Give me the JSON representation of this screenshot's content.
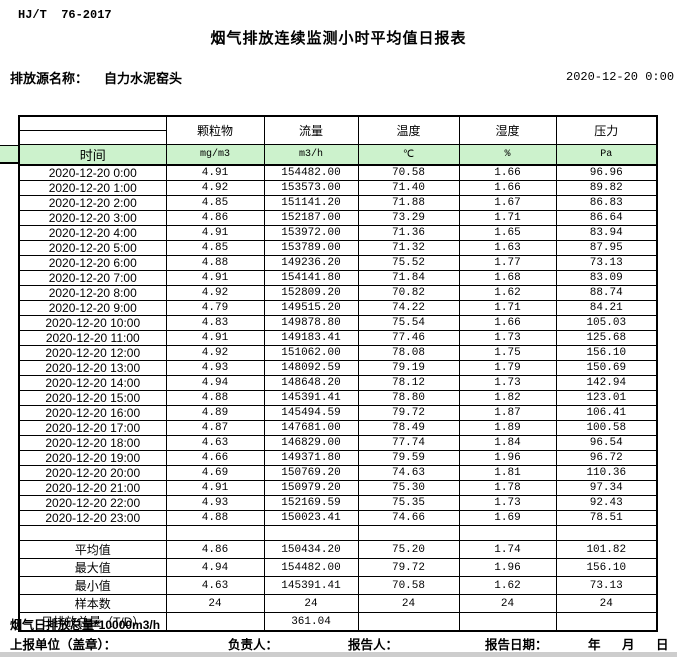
{
  "page": {
    "standard": "HJ/T  76-2017",
    "title": "烟气排放连续监测小时平均值日报表",
    "source_label": "排放源名称：",
    "source_name": "自力水泥窑头",
    "report_time": "2020-12-20 0:00"
  },
  "table": {
    "time_header": "时间",
    "columns": [
      {
        "name": "颗粒物",
        "unit": "mg/m3"
      },
      {
        "name": "流量",
        "unit": "m3/h"
      },
      {
        "name": "温度",
        "unit": "℃"
      },
      {
        "name": "湿度",
        "unit": "%"
      },
      {
        "name": "压力",
        "unit": "Pa"
      }
    ],
    "rows": [
      {
        "time": "2020-12-20 0:00",
        "values": [
          "4.91",
          "154482.00",
          "70.58",
          "1.66",
          "96.96"
        ]
      },
      {
        "time": "2020-12-20 1:00",
        "values": [
          "4.92",
          "153573.00",
          "71.40",
          "1.66",
          "89.82"
        ]
      },
      {
        "time": "2020-12-20 2:00",
        "values": [
          "4.85",
          "151141.20",
          "71.88",
          "1.67",
          "86.83"
        ]
      },
      {
        "time": "2020-12-20 3:00",
        "values": [
          "4.86",
          "152187.00",
          "73.29",
          "1.71",
          "86.64"
        ]
      },
      {
        "time": "2020-12-20 4:00",
        "values": [
          "4.91",
          "153972.00",
          "71.36",
          "1.65",
          "83.94"
        ]
      },
      {
        "time": "2020-12-20 5:00",
        "values": [
          "4.85",
          "153789.00",
          "71.32",
          "1.63",
          "87.95"
        ]
      },
      {
        "time": "2020-12-20 6:00",
        "values": [
          "4.88",
          "149236.20",
          "75.52",
          "1.77",
          "73.13"
        ]
      },
      {
        "time": "2020-12-20 7:00",
        "values": [
          "4.91",
          "154141.80",
          "71.84",
          "1.68",
          "83.09"
        ]
      },
      {
        "time": "2020-12-20 8:00",
        "values": [
          "4.92",
          "152809.20",
          "70.82",
          "1.62",
          "88.74"
        ]
      },
      {
        "time": "2020-12-20 9:00",
        "values": [
          "4.79",
          "149515.20",
          "74.22",
          "1.71",
          "84.21"
        ]
      },
      {
        "time": "2020-12-20 10:00",
        "values": [
          "4.83",
          "149878.80",
          "75.54",
          "1.66",
          "105.03"
        ]
      },
      {
        "time": "2020-12-20 11:00",
        "values": [
          "4.91",
          "149183.41",
          "77.46",
          "1.73",
          "125.68"
        ]
      },
      {
        "time": "2020-12-20 12:00",
        "values": [
          "4.92",
          "151062.00",
          "78.08",
          "1.75",
          "156.10"
        ]
      },
      {
        "time": "2020-12-20 13:00",
        "values": [
          "4.93",
          "148092.59",
          "79.19",
          "1.79",
          "150.69"
        ]
      },
      {
        "time": "2020-12-20 14:00",
        "values": [
          "4.94",
          "148648.20",
          "78.12",
          "1.73",
          "142.94"
        ]
      },
      {
        "time": "2020-12-20 15:00",
        "values": [
          "4.88",
          "145391.41",
          "78.80",
          "1.82",
          "123.01"
        ]
      },
      {
        "time": "2020-12-20 16:00",
        "values": [
          "4.89",
          "145494.59",
          "79.72",
          "1.87",
          "106.41"
        ]
      },
      {
        "time": "2020-12-20 17:00",
        "values": [
          "4.87",
          "147681.00",
          "78.49",
          "1.89",
          "100.58"
        ]
      },
      {
        "time": "2020-12-20 18:00",
        "values": [
          "4.63",
          "146829.00",
          "77.74",
          "1.84",
          "96.54"
        ]
      },
      {
        "time": "2020-12-20 19:00",
        "values": [
          "4.66",
          "149371.80",
          "79.59",
          "1.96",
          "96.72"
        ]
      },
      {
        "time": "2020-12-20 20:00",
        "values": [
          "4.69",
          "150769.20",
          "74.63",
          "1.81",
          "110.36"
        ]
      },
      {
        "time": "2020-12-20 21:00",
        "values": [
          "4.91",
          "150979.20",
          "75.30",
          "1.78",
          "97.34"
        ]
      },
      {
        "time": "2020-12-20 22:00",
        "values": [
          "4.93",
          "152169.59",
          "75.35",
          "1.73",
          "92.43"
        ]
      },
      {
        "time": "2020-12-20 23:00",
        "values": [
          "4.88",
          "150023.41",
          "74.66",
          "1.69",
          "78.51"
        ]
      }
    ],
    "summary": [
      {
        "label": "平均值",
        "values": [
          "4.86",
          "150434.20",
          "75.20",
          "1.74",
          "101.82"
        ]
      },
      {
        "label": "最大值",
        "values": [
          "4.94",
          "154482.00",
          "79.72",
          "1.96",
          "156.10"
        ]
      },
      {
        "label": "最小值",
        "values": [
          "4.63",
          "145391.41",
          "70.58",
          "1.62",
          "73.13"
        ]
      },
      {
        "label": "样本数",
        "values": [
          "24",
          "24",
          "24",
          "24",
          "24"
        ]
      },
      {
        "label": "日排放总量（T/D）",
        "values": [
          "",
          "361.04",
          "",
          "",
          ""
        ]
      }
    ]
  },
  "footer": {
    "note": "烟气日排放总量*10000m3/h",
    "unit_label": "上报单位（盖章）：",
    "charge_label": "负责人：",
    "reporter_label": "报告人：",
    "date_label": "报告日期：",
    "year": "年",
    "month": "月",
    "day": "日"
  },
  "colors": {
    "highlight_green": "#ccf2cc"
  }
}
